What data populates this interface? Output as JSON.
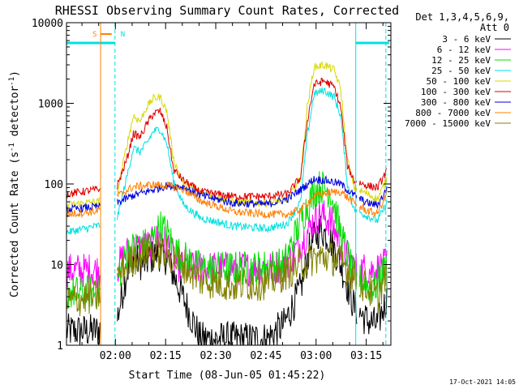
{
  "chart_data": {
    "type": "line",
    "title": "RHESSI Observing Summary Count Rates, Corrected",
    "xlabel": "Start Time (08-Jun-05 01:45:22)",
    "ylabel_prefix": "Corrected Count Rate (s",
    "ylabel_sup": "-1",
    "ylabel_suffix": " detector",
    "ylabel_end": ")",
    "yscale": "log",
    "ylim": [
      1,
      10000
    ],
    "xlim_minutes": [
      0,
      97
    ],
    "x_ticks": [
      {
        "label": "02:00",
        "minute": 14.63
      },
      {
        "label": "02:15",
        "minute": 29.63
      },
      {
        "label": "02:30",
        "minute": 44.63
      },
      {
        "label": "02:45",
        "minute": 59.63
      },
      {
        "label": "03:00",
        "minute": 74.63
      },
      {
        "label": "03:15",
        "minute": 89.63
      }
    ],
    "y_ticks": [
      {
        "label": "1",
        "value": 1
      },
      {
        "label": "10",
        "value": 10
      },
      {
        "label": "100",
        "value": 100
      },
      {
        "label": "1000",
        "value": 1000
      },
      {
        "label": "10000",
        "value": 10000
      }
    ],
    "legend_header": [
      "Det 1,3,4,5,6,9,",
      "Att 0"
    ],
    "footer_date": "17-Oct-2021 14:05",
    "series": [
      {
        "name": "3 - 6 keV",
        "color": "#000000",
        "points": [
          [
            0,
            1.5
          ],
          [
            9,
            1.5
          ],
          [
            15,
            2
          ],
          [
            18,
            8
          ],
          [
            20,
            12
          ],
          [
            23,
            10
          ],
          [
            27,
            14
          ],
          [
            30,
            12
          ],
          [
            33,
            6
          ],
          [
            36,
            3
          ],
          [
            40,
            1.2
          ],
          [
            50,
            1.2
          ],
          [
            60,
            1.2
          ],
          [
            65,
            1.8
          ],
          [
            70,
            5
          ],
          [
            73,
            18
          ],
          [
            76,
            28
          ],
          [
            79,
            20
          ],
          [
            82,
            10
          ],
          [
            86,
            3
          ],
          [
            90,
            2
          ],
          [
            93,
            1.8
          ],
          [
            96,
            4
          ]
        ]
      },
      {
        "name": "6 - 12 keV",
        "color": "#ff00ff",
        "points": [
          [
            0,
            8.5
          ],
          [
            9,
            8.5
          ],
          [
            15,
            9
          ],
          [
            18,
            14
          ],
          [
            21,
            16
          ],
          [
            25,
            17
          ],
          [
            28,
            22
          ],
          [
            30,
            18
          ],
          [
            33,
            10
          ],
          [
            40,
            9
          ],
          [
            55,
            9
          ],
          [
            65,
            9.5
          ],
          [
            70,
            18
          ],
          [
            74,
            35
          ],
          [
            76,
            42
          ],
          [
            79,
            35
          ],
          [
            82,
            18
          ],
          [
            86,
            9
          ],
          [
            92,
            8.5
          ],
          [
            96,
            10
          ]
        ]
      },
      {
        "name": "12 - 25 keV",
        "color": "#00e000",
        "points": [
          [
            0,
            4.5
          ],
          [
            9,
            4.5
          ],
          [
            15,
            6
          ],
          [
            18,
            14
          ],
          [
            21,
            17
          ],
          [
            25,
            18
          ],
          [
            28,
            30
          ],
          [
            30,
            25
          ],
          [
            33,
            14
          ],
          [
            40,
            9
          ],
          [
            55,
            9
          ],
          [
            65,
            10
          ],
          [
            70,
            35
          ],
          [
            74,
            80
          ],
          [
            76,
            95
          ],
          [
            79,
            80
          ],
          [
            82,
            25
          ],
          [
            86,
            7
          ],
          [
            92,
            5
          ],
          [
            96,
            10
          ]
        ]
      },
      {
        "name": "25 - 50 keV",
        "color": "#00e0e0",
        "points": [
          [
            0,
            25
          ],
          [
            9,
            30
          ],
          [
            15,
            35
          ],
          [
            18,
            120
          ],
          [
            20,
            280
          ],
          [
            22,
            250
          ],
          [
            24,
            320
          ],
          [
            26,
            450
          ],
          [
            28,
            480
          ],
          [
            30,
            320
          ],
          [
            32,
            110
          ],
          [
            35,
            55
          ],
          [
            40,
            38
          ],
          [
            50,
            30
          ],
          [
            60,
            28
          ],
          [
            66,
            32
          ],
          [
            70,
            60
          ],
          [
            72,
            400
          ],
          [
            74,
            1300
          ],
          [
            77,
            1450
          ],
          [
            80,
            1200
          ],
          [
            82,
            700
          ],
          [
            84,
            100
          ],
          [
            86,
            48
          ],
          [
            90,
            40
          ],
          [
            93,
            35
          ],
          [
            96,
            60
          ]
        ]
      },
      {
        "name": "50 - 100 keV",
        "color": "#d8d800",
        "points": [
          [
            0,
            55
          ],
          [
            9,
            60
          ],
          [
            15,
            70
          ],
          [
            18,
            300
          ],
          [
            20,
            700
          ],
          [
            22,
            600
          ],
          [
            24,
            900
          ],
          [
            26,
            1150
          ],
          [
            28,
            1200
          ],
          [
            30,
            800
          ],
          [
            32,
            200
          ],
          [
            35,
            100
          ],
          [
            40,
            80
          ],
          [
            50,
            60
          ],
          [
            60,
            58
          ],
          [
            66,
            65
          ],
          [
            70,
            120
          ],
          [
            72,
            900
          ],
          [
            74,
            2800
          ],
          [
            77,
            3000
          ],
          [
            80,
            2600
          ],
          [
            82,
            1500
          ],
          [
            84,
            200
          ],
          [
            86,
            90
          ],
          [
            90,
            75
          ],
          [
            93,
            65
          ],
          [
            96,
            120
          ]
        ]
      },
      {
        "name": "100 - 300 keV",
        "color": "#e00000",
        "points": [
          [
            0,
            75
          ],
          [
            9,
            85
          ],
          [
            15,
            90
          ],
          [
            18,
            200
          ],
          [
            20,
            420
          ],
          [
            22,
            380
          ],
          [
            24,
            550
          ],
          [
            26,
            750
          ],
          [
            28,
            800
          ],
          [
            30,
            500
          ],
          [
            32,
            150
          ],
          [
            35,
            110
          ],
          [
            40,
            80
          ],
          [
            50,
            70
          ],
          [
            60,
            70
          ],
          [
            66,
            75
          ],
          [
            70,
            120
          ],
          [
            72,
            600
          ],
          [
            74,
            1700
          ],
          [
            77,
            1900
          ],
          [
            80,
            1600
          ],
          [
            82,
            900
          ],
          [
            84,
            170
          ],
          [
            86,
            110
          ],
          [
            90,
            95
          ],
          [
            93,
            90
          ],
          [
            96,
            150
          ]
        ]
      },
      {
        "name": "300 - 800 keV",
        "color": "#0000e0",
        "points": [
          [
            0,
            48
          ],
          [
            9,
            52
          ],
          [
            15,
            58
          ],
          [
            20,
            72
          ],
          [
            26,
            85
          ],
          [
            30,
            95
          ],
          [
            35,
            92
          ],
          [
            40,
            72
          ],
          [
            50,
            58
          ],
          [
            60,
            56
          ],
          [
            66,
            65
          ],
          [
            70,
            85
          ],
          [
            74,
            115
          ],
          [
            78,
            110
          ],
          [
            82,
            100
          ],
          [
            86,
            72
          ],
          [
            90,
            58
          ],
          [
            93,
            55
          ],
          [
            96,
            90
          ]
        ]
      },
      {
        "name": "800 - 7000 keV",
        "color": "#ff8000",
        "points": [
          [
            0,
            42
          ],
          [
            9,
            46
          ],
          [
            15,
            70
          ],
          [
            20,
            92
          ],
          [
            26,
            98
          ],
          [
            30,
            96
          ],
          [
            35,
            85
          ],
          [
            40,
            62
          ],
          [
            50,
            45
          ],
          [
            60,
            42
          ],
          [
            66,
            42
          ],
          [
            70,
            48
          ],
          [
            74,
            70
          ],
          [
            78,
            78
          ],
          [
            82,
            80
          ],
          [
            86,
            58
          ],
          [
            90,
            46
          ],
          [
            93,
            43
          ],
          [
            96,
            80
          ]
        ]
      },
      {
        "name": "7000 - 15000 keV",
        "color": "#808000",
        "points": [
          [
            0,
            3.5
          ],
          [
            9,
            4
          ],
          [
            15,
            7
          ],
          [
            20,
            12
          ],
          [
            25,
            15
          ],
          [
            28,
            14
          ],
          [
            32,
            12
          ],
          [
            36,
            9
          ],
          [
            40,
            6.5
          ],
          [
            50,
            5.5
          ],
          [
            60,
            6
          ],
          [
            66,
            8
          ],
          [
            70,
            10
          ],
          [
            74,
            12
          ],
          [
            78,
            12.5
          ],
          [
            82,
            11
          ],
          [
            86,
            7
          ],
          [
            90,
            5
          ],
          [
            93,
            4
          ],
          [
            96,
            8
          ]
        ]
      }
    ],
    "data_gaps_minutes": [
      [
        10,
        15
      ],
      [
        87,
        87.5
      ]
    ],
    "attenuator_markers": [
      {
        "label": "S",
        "color": "#ff8000",
        "minute": 10.2,
        "style": "solid",
        "bar_from": 10.2,
        "bar_to": 13.5
      },
      {
        "label": "N",
        "color": "#00e0e0",
        "minute": 14.5,
        "style": "dashed"
      },
      {
        "label": "",
        "color": "#00e0e0",
        "minute": 86.5,
        "style": "solid"
      },
      {
        "label": "",
        "color": "#00e0e0",
        "minute": 95.5,
        "style": "dashed"
      }
    ],
    "night_bar": {
      "color": "#00e0e0",
      "segments": [
        [
          0,
          14.5
        ],
        [
          86.5,
          96.5
        ]
      ],
      "level": 5600
    },
    "x_minor_ticks_every_minutes": 5
  }
}
